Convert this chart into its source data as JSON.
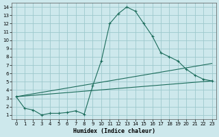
{
  "xlabel": "Humidex (Indice chaleur)",
  "ylabel": "",
  "bg_color": "#cde8ec",
  "grid_color": "#9dc8cc",
  "line_color": "#1a6b5a",
  "xlim": [
    -0.5,
    23.5
  ],
  "ylim": [
    0.5,
    14.5
  ],
  "xticks": [
    0,
    1,
    2,
    3,
    4,
    5,
    6,
    7,
    8,
    9,
    10,
    11,
    12,
    13,
    14,
    15,
    16,
    17,
    18,
    19,
    20,
    21,
    22,
    23
  ],
  "yticks": [
    1,
    2,
    3,
    4,
    5,
    6,
    7,
    8,
    9,
    10,
    11,
    12,
    13,
    14
  ],
  "series1_x": [
    0,
    1,
    2,
    3,
    4,
    5,
    6,
    7,
    8,
    9,
    10,
    11,
    12,
    13,
    14,
    15,
    16,
    17,
    18,
    19,
    20,
    21,
    22,
    23
  ],
  "series1_y": [
    3.2,
    1.8,
    1.6,
    1.0,
    1.2,
    1.2,
    1.3,
    1.5,
    1.1,
    4.5,
    7.5,
    12.0,
    13.2,
    14.0,
    13.5,
    12.0,
    10.5,
    8.5,
    8.0,
    7.5,
    6.5,
    5.8,
    5.3,
    5.1
  ],
  "series2_x": [
    0,
    23
  ],
  "series2_y": [
    3.2,
    7.2
  ],
  "series3_x": [
    0,
    23
  ],
  "series3_y": [
    3.2,
    5.1
  ]
}
